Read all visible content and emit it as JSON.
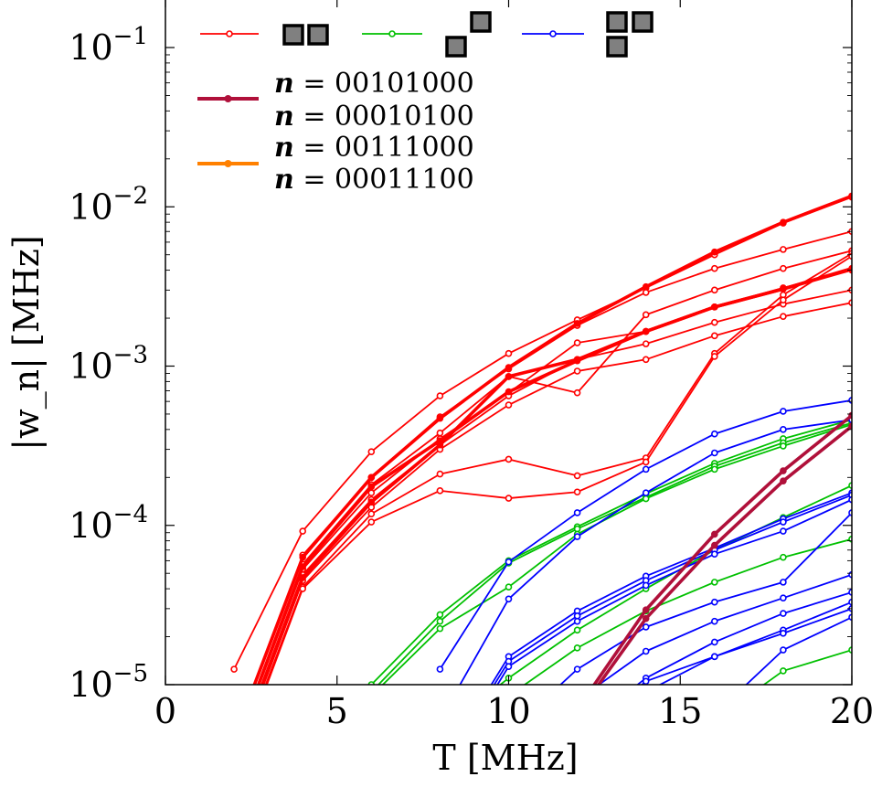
{
  "chart_data": {
    "type": "line",
    "xlabel": "T [MHz]",
    "ylabel": "|w_n| [MHz]",
    "xlim": [
      0,
      20
    ],
    "ylim": [
      1e-05,
      0.2
    ],
    "yscale": "log",
    "grid": false,
    "legend_position": "top-left",
    "x_ticks": [
      {
        "value": 0,
        "label": "0"
      },
      {
        "value": 5,
        "label": "5"
      },
      {
        "value": 10,
        "label": "10"
      },
      {
        "value": 15,
        "label": "15"
      },
      {
        "value": 20,
        "label": "20"
      }
    ],
    "y_ticks": [
      {
        "value": 1e-05,
        "base": "10",
        "exp": "−5"
      },
      {
        "value": 0.0001,
        "base": "10",
        "exp": "−4"
      },
      {
        "value": 0.001,
        "base": "10",
        "exp": "−3"
      },
      {
        "value": 0.01,
        "base": "10",
        "exp": "−2"
      },
      {
        "value": 0.1,
        "base": "10",
        "exp": "−1"
      }
    ],
    "legend": [
      {
        "color": "#ff0000",
        "style": "thin",
        "shape": "domino-horizontal"
      },
      {
        "color": "#00c000",
        "style": "thin",
        "shape": "domino-diagonal"
      },
      {
        "color": "#0000ff",
        "style": "thin",
        "shape": "tromino-L"
      },
      {
        "color": "#b0103a",
        "style": "thick",
        "labels": [
          "00101000",
          "00010100"
        ]
      },
      {
        "color": "#ff8000",
        "style": "thick",
        "labels": [
          "00111000",
          "00011100"
        ]
      }
    ],
    "legend_var": "n",
    "series_groups": [
      {
        "color": "#ff0000",
        "thick": false,
        "series": [
          {
            "x": [
              2,
              4,
              6,
              8,
              10,
              12,
              14,
              16,
              18,
              20
            ],
            "y": [
              1.25e-05,
              9.2e-05,
              0.00029,
              0.00065,
              0.0012,
              0.00195,
              0.0031,
              0.005,
              0.0079,
              0.0115
            ]
          },
          {
            "x": [
              2,
              4,
              6,
              8,
              10,
              12,
              14,
              16,
              18,
              20
            ],
            "y": [
              4.5e-06,
              6.5e-05,
              0.0002,
              0.00048,
              0.00096,
              0.0018,
              0.0029,
              0.0041,
              0.0054,
              0.007
            ]
          },
          {
            "x": [
              2,
              4,
              6,
              8,
              10,
              12,
              14,
              16,
              18,
              20
            ],
            "y": [
              4e-06,
              5.7e-05,
              0.00018,
              0.00038,
              0.00086,
              0.00068,
              0.0021,
              0.003,
              0.0041,
              0.0053
            ]
          },
          {
            "x": [
              2,
              4,
              6,
              8,
              10,
              12,
              14,
              16,
              18,
              20
            ],
            "y": [
              3.8e-06,
              5.3e-05,
              0.00016,
              0.00035,
              0.00068,
              0.0014,
              0.00165,
              0.00235,
              0.0031,
              0.004
            ]
          },
          {
            "x": [
              2,
              4,
              6,
              8,
              10,
              12,
              14,
              16,
              18,
              20
            ],
            "y": [
              3.5e-06,
              4.9e-05,
              0.000145,
              0.00032,
              0.00065,
              0.0011,
              0.00138,
              0.00188,
              0.00245,
              0.003
            ]
          },
          {
            "x": [
              2,
              4,
              6,
              8,
              10,
              12,
              14,
              16,
              18,
              20
            ],
            "y": [
              3.2e-06,
              4.5e-05,
              0.00013,
              0.0003,
              0.00057,
              0.00093,
              0.0011,
              0.00155,
              0.00205,
              0.0025
            ]
          },
          {
            "x": [
              2,
              4,
              6,
              8,
              10,
              12,
              14,
              16,
              18,
              20
            ],
            "y": [
              3e-06,
              4.1e-05,
              0.000118,
              0.00021,
              0.00026,
              0.000205,
              0.000265,
              0.0012,
              0.0028,
              0.0051
            ]
          },
          {
            "x": [
              2,
              4,
              6,
              8,
              10,
              12,
              14,
              16,
              18,
              20
            ],
            "y": [
              2.8e-06,
              4e-05,
              0.000105,
              0.000165,
              0.000148,
              0.000162,
              0.00025,
              0.00115,
              0.0026,
              0.0049
            ]
          }
        ]
      },
      {
        "color": "#ff0000",
        "thick": true,
        "series": [
          {
            "x": [
              2,
              4,
              6,
              8,
              10,
              12,
              14,
              16,
              18,
              20
            ],
            "y": [
              4.6e-06,
              6.3e-05,
              0.0002,
              0.00047,
              0.00098,
              0.00185,
              0.00315,
              0.0052,
              0.008,
              0.0117
            ]
          },
          {
            "x": [
              2,
              4,
              6,
              8,
              10,
              12,
              14,
              16,
              18,
              20
            ],
            "y": [
              3.9e-06,
              5.5e-05,
              0.000175,
              0.00034,
              0.00069,
              0.00108,
              0.00165,
              0.00235,
              0.00305,
              0.00405
            ]
          },
          {
            "x": [
              2,
              4,
              6,
              8,
              10,
              12,
              14,
              16,
              18,
              20
            ],
            "y": [
              3.3e-06,
              4.7e-05,
              0.00014,
              0.00032,
              0.00086,
              0.0011,
              0.00165,
              0.00235,
              0.00305,
              0.0041
            ]
          }
        ]
      },
      {
        "color": "#00c000",
        "thick": false,
        "series": [
          {
            "x": [
              6,
              8,
              10,
              12,
              14,
              16,
              18,
              20
            ],
            "y": [
              1e-05,
              2.75e-05,
              6e-05,
              9.8e-05,
              0.000158,
              0.000245,
              0.00035,
              0.00046
            ]
          },
          {
            "x": [
              6,
              8,
              10,
              12,
              14,
              16,
              18,
              20
            ],
            "y": [
              9e-06,
              2.5e-05,
              5.8e-05,
              9.5e-05,
              0.00015,
              0.000235,
              0.00033,
              0.00044
            ]
          },
          {
            "x": [
              6,
              8,
              10,
              12,
              14,
              16,
              18,
              20
            ],
            "y": [
              8.5e-06,
              2.25e-05,
              4.1e-05,
              8.8e-05,
              0.000147,
              0.000225,
              0.000315,
              0.00043
            ]
          },
          {
            "x": [
              8,
              10,
              12,
              14,
              16,
              18,
              20
            ],
            "y": [
              5e-06,
              1.1e-05,
              2.2e-05,
              4e-05,
              7e-05,
              0.000112,
              0.000178
            ]
          },
          {
            "x": [
              8,
              10,
              12,
              14,
              16,
              18,
              20
            ],
            "y": [
              4e-06,
              8.5e-06,
              1.7e-05,
              2.9e-05,
              4.4e-05,
              6.3e-05,
              8.2e-05
            ]
          },
          {
            "x": [
              12,
              14,
              16,
              18,
              20
            ],
            "y": [
              2e-06,
              3.5e-06,
              6e-06,
              1.22e-05,
              1.65e-05
            ]
          }
        ]
      },
      {
        "color": "#0000ff",
        "thick": false,
        "series": [
          {
            "x": [
              8,
              10,
              12,
              14,
              16,
              18,
              20
            ],
            "y": [
              1.25e-05,
              5.9e-05,
              0.00012,
              0.000225,
              0.000375,
              0.00052,
              0.00061
            ]
          },
          {
            "x": [
              8,
              10,
              12,
              14,
              16,
              18,
              20
            ],
            "y": [
              6e-06,
              3.45e-05,
              8.5e-05,
              0.00016,
              0.000285,
              0.0004,
              0.00046
            ]
          },
          {
            "x": [
              8,
              10,
              12,
              14,
              16,
              18,
              20
            ],
            "y": [
              3e-06,
              1.5e-05,
              2.9e-05,
              4.8e-05,
              7.2e-05,
              0.00011,
              0.00016
            ]
          },
          {
            "x": [
              8,
              10,
              12,
              14,
              16,
              18,
              20
            ],
            "y": [
              2.8e-06,
              1.4e-05,
              2.7e-05,
              4.5e-05,
              7e-05,
              0.000105,
              0.000155
            ]
          },
          {
            "x": [
              8,
              10,
              12,
              14,
              16,
              18,
              20
            ],
            "y": [
              2.6e-06,
              1.3e-05,
              2.5e-05,
              4.2e-05,
              6.6e-05,
              9.2e-05,
              0.000145
            ]
          },
          {
            "x": [
              10,
              12,
              14,
              16,
              18,
              20
            ],
            "y": [
              5e-06,
              1.25e-05,
              2.3e-05,
              3.3e-05,
              4.4e-05,
              0.00012
            ]
          },
          {
            "x": [
              10,
              12,
              14,
              16,
              18,
              20
            ],
            "y": [
              3e-06,
              8e-06,
              1.62e-05,
              2.5e-05,
              3.5e-05,
              4.9e-05
            ]
          },
          {
            "x": [
              12,
              14,
              16,
              18,
              20
            ],
            "y": [
              5e-06,
              1.1e-05,
              1.85e-05,
              2.8e-05,
              3.8e-05
            ]
          },
          {
            "x": [
              12,
              14,
              16,
              18,
              20
            ],
            "y": [
              4.5e-06,
              1.05e-05,
              1.5e-05,
              2.2e-05,
              3.3e-05
            ]
          },
          {
            "x": [
              12,
              14,
              16,
              18,
              20
            ],
            "y": [
              4e-06,
              9e-06,
              1.5e-05,
              2.1e-05,
              3e-05
            ]
          },
          {
            "x": [
              14,
              16,
              18,
              20
            ],
            "y": [
              3e-06,
              6.5e-06,
              1.65e-05,
              2.65e-05
            ]
          }
        ]
      },
      {
        "color": "#b0103a",
        "thick": true,
        "series": [
          {
            "x": [
              12,
              14,
              16,
              18,
              20
            ],
            "y": [
              7e-06,
              2.95e-05,
              8.8e-05,
              0.00022,
              0.00049
            ]
          },
          {
            "x": [
              12,
              14,
              16,
              18,
              20
            ],
            "y": [
              6.5e-06,
              2.6e-05,
              7.5e-05,
              0.00019,
              0.00042
            ]
          }
        ]
      }
    ]
  }
}
